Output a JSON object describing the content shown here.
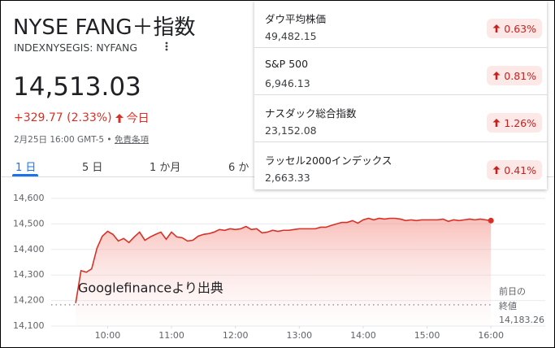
{
  "header": {
    "title": "NYSE FANG＋指数",
    "ticker": "INDEXNYSEGIS: NYFANG",
    "price": "14,513.03",
    "change": "+329.77 (2.33%)",
    "change_period": "今日",
    "timestamp": "2月25日 16:00 GMT-5 •",
    "disclaimer": "免責条項"
  },
  "tabs": [
    "1 日",
    "5 日",
    "1 か月",
    "6 か"
  ],
  "markets": [
    {
      "name": "ダウ平均株価",
      "value": "49,482.15",
      "change": "0.63%"
    },
    {
      "name": "S&P 500",
      "value": "6,946.13",
      "change": "0.81%"
    },
    {
      "name": "ナスダック総合指数",
      "value": "23,152.08",
      "change": "1.26%"
    },
    {
      "name": "ラッセル2000インデックス",
      "value": "2,663.33",
      "change": "0.41%"
    }
  ],
  "chart_data": {
    "type": "line",
    "annotation": "Googlefinanceより出典",
    "x": [
      570,
      575,
      580,
      585,
      590,
      595,
      600,
      605,
      610,
      615,
      620,
      625,
      630,
      635,
      640,
      645,
      650,
      655,
      660,
      665,
      670,
      675,
      680,
      685,
      690,
      695,
      700,
      705,
      710,
      715,
      720,
      725,
      730,
      735,
      740,
      745,
      750,
      755,
      760,
      765,
      770,
      775,
      780,
      785,
      790,
      795,
      800,
      805,
      810,
      815,
      820,
      825,
      830,
      835,
      840,
      845,
      850,
      855,
      860,
      865,
      870,
      875,
      880,
      885,
      890,
      895,
      900,
      905,
      910,
      915,
      920,
      925,
      930,
      935,
      940,
      945,
      950,
      955,
      960
    ],
    "series": [
      {
        "color": "#d93025",
        "values": [
          14190,
          14317,
          14311,
          14324,
          14405,
          14452,
          14471,
          14459,
          14433,
          14443,
          14427,
          14449,
          14468,
          14436,
          14449,
          14459,
          14468,
          14440,
          14468,
          14449,
          14446,
          14433,
          14436,
          14452,
          14459,
          14462,
          14468,
          14478,
          14475,
          14481,
          14478,
          14481,
          14490,
          14478,
          14481,
          14465,
          14468,
          14475,
          14471,
          14475,
          14475,
          14478,
          14481,
          14481,
          14481,
          14481,
          14487,
          14487,
          14494,
          14500,
          14506,
          14506,
          14513,
          14503,
          14516,
          14522,
          14516,
          14522,
          14519,
          14522,
          14522,
          14519,
          14513,
          14516,
          14513,
          14516,
          14516,
          14516,
          14516,
          14519,
          14510,
          14516,
          14513,
          14516,
          14519,
          14516,
          14519,
          14516,
          14513.03
        ]
      }
    ],
    "xlim": [
      547,
      1011
    ],
    "xticks": [
      {
        "value": 600,
        "label": "10:00"
      },
      {
        "value": 660,
        "label": "11:00"
      },
      {
        "value": 720,
        "label": "12:00"
      },
      {
        "value": 780,
        "label": "13:00"
      },
      {
        "value": 840,
        "label": "14:00"
      },
      {
        "value": 900,
        "label": "15:00"
      },
      {
        "value": 960,
        "label": "16:00"
      }
    ],
    "ylim": [
      14100,
      14600
    ],
    "yticks": [
      {
        "value": 14100,
        "label": "14,100"
      },
      {
        "value": 14200,
        "label": "14,200"
      },
      {
        "value": 14300,
        "label": "14,300"
      },
      {
        "value": 14400,
        "label": "14,400"
      },
      {
        "value": 14500,
        "label": "14,500"
      },
      {
        "value": 14600,
        "label": "14,600"
      }
    ],
    "grid": true,
    "reference_line": {
      "value": 14183.26,
      "label": "14,183.26",
      "title_lines": [
        "前日の",
        "終値"
      ]
    }
  }
}
